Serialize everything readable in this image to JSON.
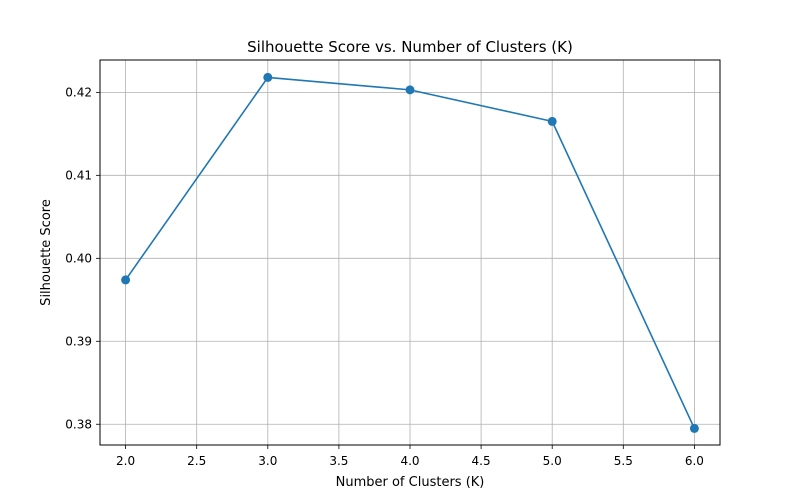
{
  "chart_data": {
    "type": "line",
    "title": "Silhouette Score vs. Number of Clusters (K)",
    "xlabel": "Number of Clusters (K)",
    "ylabel": "Silhouette Score",
    "xlim": [
      1.82,
      6.18
    ],
    "ylim": [
      0.3775,
      0.4239
    ],
    "x_ticks": [
      2.0,
      2.5,
      3.0,
      3.5,
      4.0,
      4.5,
      5.0,
      5.5,
      6.0
    ],
    "x_tick_labels": [
      "2.0",
      "2.5",
      "3.0",
      "3.5",
      "4.0",
      "4.5",
      "5.0",
      "5.5",
      "6.0"
    ],
    "y_ticks": [
      0.38,
      0.39,
      0.4,
      0.41,
      0.42
    ],
    "y_tick_labels": [
      "0.38",
      "0.39",
      "0.40",
      "0.41",
      "0.42"
    ],
    "grid": true,
    "series": [
      {
        "x": [
          2,
          3,
          4,
          5,
          6
        ],
        "values": [
          0.3974,
          0.4218,
          0.4203,
          0.4165,
          0.3795
        ],
        "color": "#1f77b4",
        "marker": "circle"
      }
    ]
  }
}
